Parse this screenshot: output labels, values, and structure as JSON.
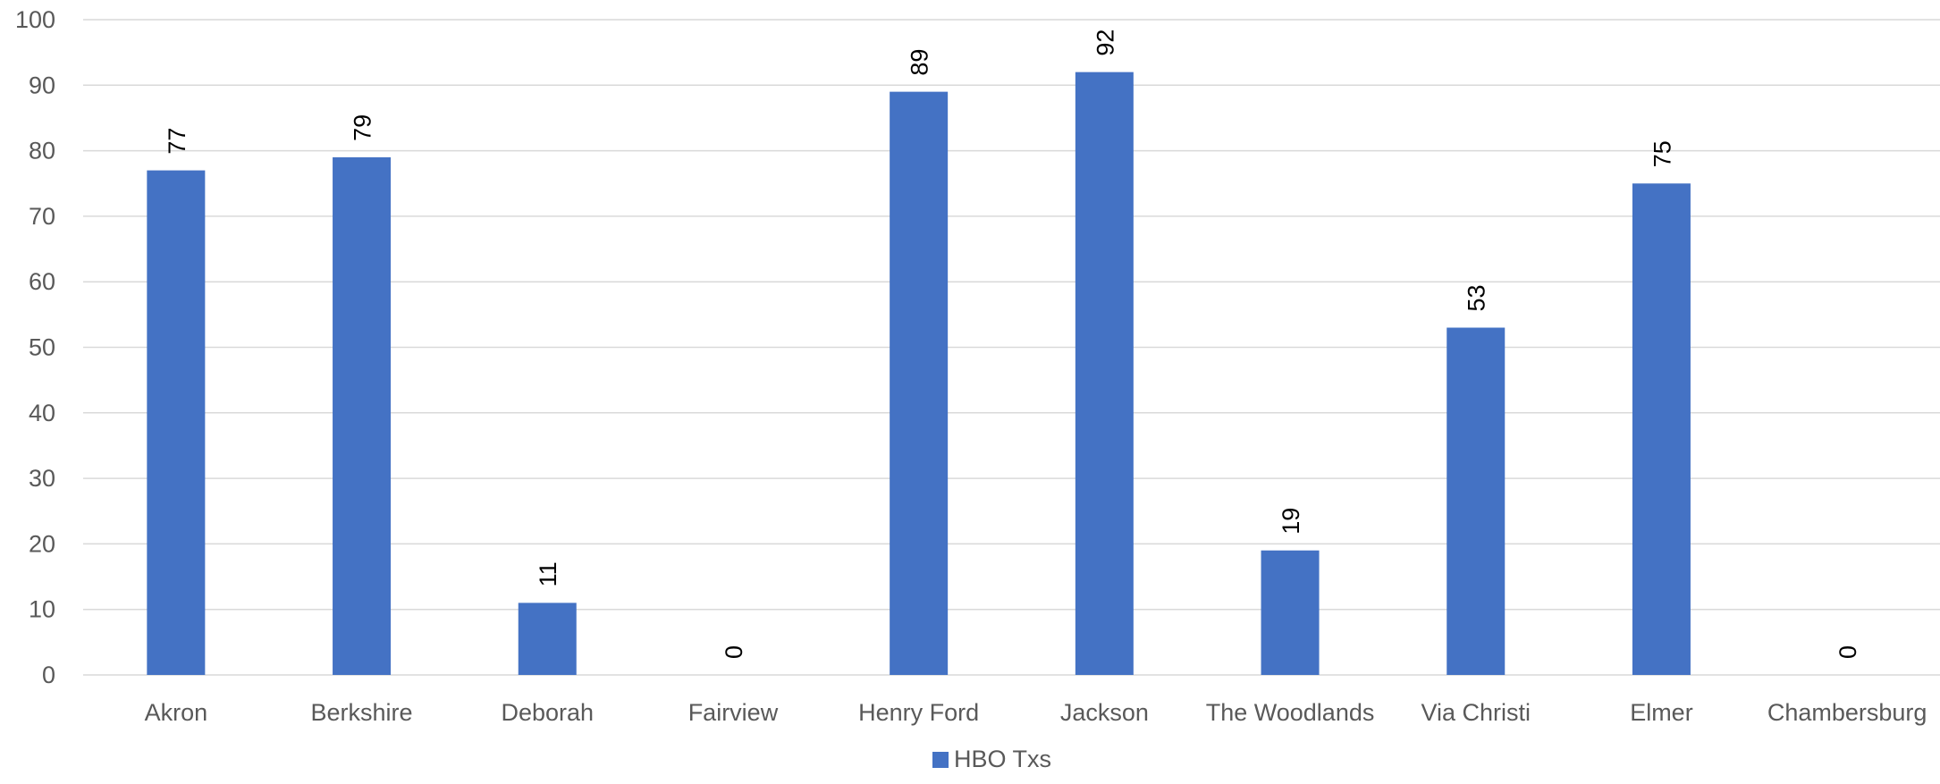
{
  "chart_data": {
    "type": "bar",
    "categories": [
      "Akron",
      "Berkshire",
      "Deborah",
      "Fairview",
      "Henry Ford",
      "Jackson",
      "The Woodlands",
      "Via Christi",
      "Elmer",
      "Chambersburg"
    ],
    "series": [
      {
        "name": "HBO Txs",
        "values": [
          77,
          79,
          11,
          0,
          89,
          92,
          19,
          53,
          75,
          0
        ],
        "color": "#4472C4"
      }
    ],
    "yticks": [
      0,
      10,
      20,
      30,
      40,
      50,
      60,
      70,
      80,
      90,
      100
    ],
    "ylim": [
      0,
      100
    ],
    "grid": true,
    "legend_position": "bottom-center",
    "data_labels": true,
    "colors": {
      "grid": "#D9D9D9",
      "axis_text": "#595959",
      "label_text": "#000000"
    }
  }
}
